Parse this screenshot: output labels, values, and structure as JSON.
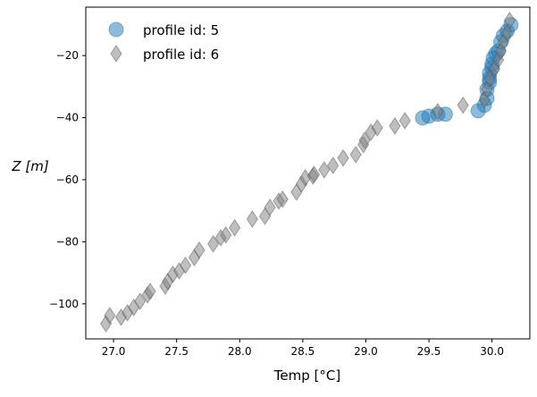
{
  "chart_data": {
    "type": "scatter",
    "title": "",
    "xlabel": "Temp [°C]",
    "xlabel_parts": {
      "main": "Temp [",
      "deg": "°",
      "unit": "C",
      "close": "]"
    },
    "ylabel": "Z [m]",
    "ylabel_parts": {
      "var": "Z",
      "open": "[",
      "unit": "m",
      "close": "]"
    },
    "xlim": [
      26.78,
      30.3
    ],
    "ylim": [
      -111.3,
      -4.4
    ],
    "xticks": [
      27.0,
      27.5,
      28.0,
      28.5,
      29.0,
      29.5,
      30.0
    ],
    "xtick_labels": [
      "27.0",
      "27.5",
      "28.0",
      "28.5",
      "29.0",
      "29.5",
      "30.0"
    ],
    "yticks": [
      -20,
      -40,
      -60,
      -80,
      -100
    ],
    "ytick_labels": [
      "−20",
      "−40",
      "−60",
      "−80",
      "−100"
    ],
    "grid": false,
    "legend_position": "top-left",
    "series": [
      {
        "name": "profile id: 5",
        "marker": "circle",
        "color": "#1f77b4",
        "points": [
          [
            29.45,
            -40.1
          ],
          [
            29.5,
            -39.5
          ],
          [
            29.57,
            -38.9
          ],
          [
            29.63,
            -38.9
          ],
          [
            29.89,
            -37.8
          ],
          [
            29.94,
            -36.0
          ],
          [
            29.96,
            -33.8
          ],
          [
            29.96,
            -30.9
          ],
          [
            29.98,
            -28.6
          ],
          [
            29.98,
            -27.4
          ],
          [
            29.98,
            -25.7
          ],
          [
            30.0,
            -24.0
          ],
          [
            30.0,
            -22.8
          ],
          [
            30.01,
            -20.8
          ],
          [
            30.03,
            -19.4
          ],
          [
            30.05,
            -18.5
          ],
          [
            30.07,
            -15.6
          ],
          [
            30.09,
            -13.6
          ],
          [
            30.12,
            -12.1
          ],
          [
            30.15,
            -10.1
          ]
        ]
      },
      {
        "name": "profile id: 6",
        "marker": "diamond",
        "color": "#808080",
        "points": [
          [
            26.94,
            -106.4
          ],
          [
            26.97,
            -103.8
          ],
          [
            27.06,
            -104.3
          ],
          [
            27.11,
            -102.9
          ],
          [
            27.16,
            -101.2
          ],
          [
            27.21,
            -99.2
          ],
          [
            27.27,
            -97.1
          ],
          [
            27.29,
            -96.0
          ],
          [
            27.41,
            -94.3
          ],
          [
            27.43,
            -92.8
          ],
          [
            27.47,
            -90.5
          ],
          [
            27.52,
            -89.4
          ],
          [
            27.57,
            -87.6
          ],
          [
            27.64,
            -85.1
          ],
          [
            27.68,
            -82.7
          ],
          [
            27.79,
            -80.7
          ],
          [
            27.85,
            -78.7
          ],
          [
            27.89,
            -77.8
          ],
          [
            27.96,
            -75.5
          ],
          [
            28.1,
            -72.7
          ],
          [
            28.2,
            -71.8
          ],
          [
            28.24,
            -68.9
          ],
          [
            28.31,
            -66.9
          ],
          [
            28.34,
            -66.3
          ],
          [
            28.45,
            -64.0
          ],
          [
            28.49,
            -61.4
          ],
          [
            28.52,
            -59.4
          ],
          [
            28.58,
            -58.8
          ],
          [
            28.59,
            -58.3
          ],
          [
            28.67,
            -56.8
          ],
          [
            28.74,
            -55.4
          ],
          [
            28.82,
            -53.0
          ],
          [
            28.92,
            -51.9
          ],
          [
            28.98,
            -48.7
          ],
          [
            28.99,
            -47.3
          ],
          [
            29.04,
            -44.7
          ],
          [
            29.09,
            -43.3
          ],
          [
            29.23,
            -42.7
          ],
          [
            29.31,
            -41.0
          ],
          [
            29.57,
            -38.1
          ],
          [
            29.77,
            -36.0
          ],
          [
            29.94,
            -34.3
          ],
          [
            29.96,
            -30.9
          ],
          [
            29.98,
            -27.4
          ],
          [
            30.02,
            -24.2
          ],
          [
            30.05,
            -21.4
          ],
          [
            30.07,
            -18.5
          ],
          [
            30.09,
            -15.6
          ],
          [
            30.12,
            -12.7
          ],
          [
            30.14,
            -8.7
          ]
        ]
      }
    ]
  }
}
